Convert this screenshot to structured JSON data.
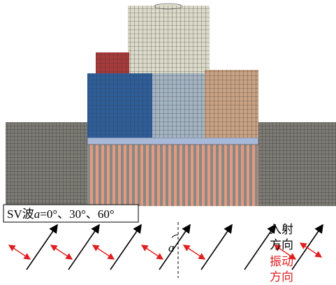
{
  "wave_label": {
    "prefix": "SV波",
    "symbol": "a",
    "suffix": "=0°、30°、60°"
  },
  "angle_label": "a",
  "incidence_label": [
    "入射",
    "方向"
  ],
  "vibration_label": [
    "振动",
    "方向"
  ]
}
